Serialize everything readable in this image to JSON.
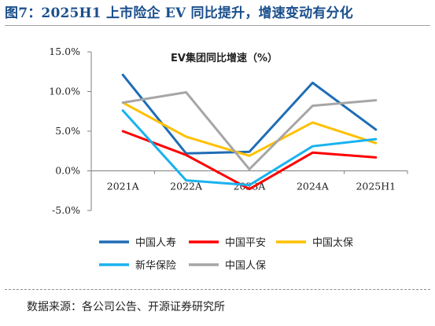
{
  "figure": {
    "title": "图7：2025H1 上市险企 EV 同比提升，增速变动有分化",
    "source": "数据来源：各公司公告、开源证券研究所"
  },
  "chart_data": {
    "type": "line",
    "title": "EV集团同比增速（%）",
    "categories": [
      "2021A",
      "2022A",
      "2023A",
      "2024A",
      "2025H1"
    ],
    "y_tick_labels": [
      "15.0%",
      "10.0%",
      "5.0%",
      "0.0%",
      "-5.0%"
    ],
    "ylim": [
      -5,
      15
    ],
    "y_ticks": [
      15,
      10,
      5,
      0,
      -5
    ],
    "grid": false,
    "legend_position": "bottom",
    "series": [
      {
        "name": "中国人寿",
        "color": "#1f6db5",
        "values": [
          12.1,
          2.2,
          2.4,
          11.1,
          5.2
        ]
      },
      {
        "name": "中国平安",
        "color": "#ff0000",
        "values": [
          5.0,
          2.0,
          -2.3,
          2.3,
          1.7
        ]
      },
      {
        "name": "中国太保",
        "color": "#ffc000",
        "values": [
          8.6,
          4.3,
          1.9,
          6.1,
          3.5
        ]
      },
      {
        "name": "新华保险",
        "color": "#19b2ee",
        "values": [
          7.6,
          -1.2,
          -1.8,
          3.1,
          4.0
        ]
      },
      {
        "name": "中国人保",
        "color": "#a6a6a6",
        "values": [
          8.6,
          9.9,
          0.2,
          8.2,
          8.9
        ]
      }
    ]
  }
}
